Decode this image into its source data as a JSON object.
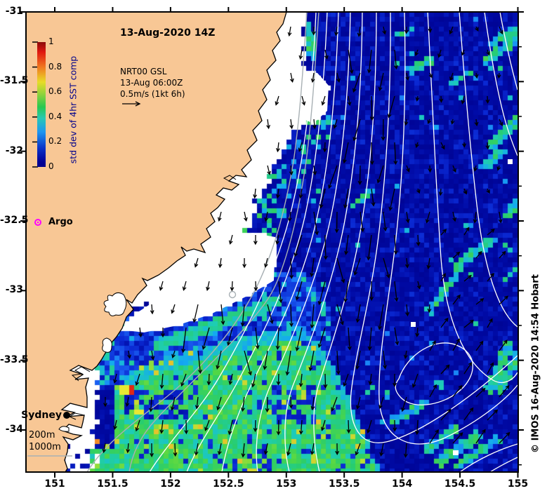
{
  "map": {
    "title": "13-Aug-2020 14Z",
    "annotation": {
      "model": "NRT00 GSL",
      "time": "13-Aug 06:00Z",
      "vector_scale": "0.5m/s (1kt 6h)"
    },
    "credit": "© IMOS 16-Aug-2020 14:54 Hobart",
    "markers": {
      "argo": "Argo",
      "sydney": "Sydney"
    },
    "isobath_labels": {
      "i200": "200m",
      "i1000": "1000m"
    }
  },
  "colorbar": {
    "label": "std dev of 4hr SST comp",
    "tick_labels": [
      "1",
      "0.8",
      "0.6",
      "0.4",
      "0.2",
      "0"
    ],
    "min": 0,
    "max": 1
  },
  "axes": {
    "x_tick_labels": [
      "151",
      "151.5",
      "152",
      "152.5",
      "153",
      "153.5",
      "154",
      "154.5",
      "155"
    ],
    "y_tick_labels": [
      "-31",
      "-31.5",
      "-32",
      "-32.5",
      "-33",
      "-33.5",
      "-34"
    ],
    "lon_range": [
      150.75,
      155
    ],
    "lat_range": [
      -34.3,
      -31
    ]
  },
  "colors": {
    "land": "#F8C795",
    "ocean_deep": "#000090",
    "colorbar_label": "#00008B",
    "argo_marker": "#FF00FF",
    "ssh_contour": "#FFFFFF",
    "isobath": "#A8B0B4",
    "coastline": "#000000"
  }
}
